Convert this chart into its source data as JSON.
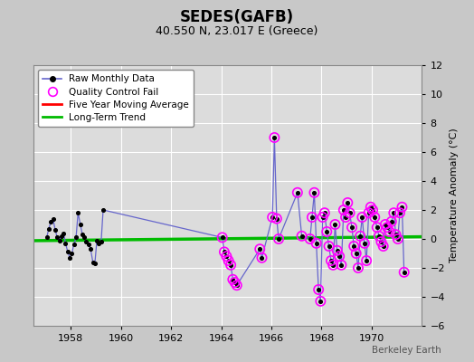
{
  "title": "SEDES(GAFB)",
  "subtitle": "40.550 N, 23.017 E (Greece)",
  "ylabel": "Temperature Anomaly (°C)",
  "watermark": "Berkeley Earth",
  "xlim": [
    1956.5,
    1972.0
  ],
  "ylim": [
    -6,
    12
  ],
  "yticks": [
    -6,
    -4,
    -2,
    0,
    2,
    4,
    6,
    8,
    10,
    12
  ],
  "xticks": [
    1958,
    1960,
    1962,
    1964,
    1966,
    1968,
    1970
  ],
  "fig_bg_color": "#c8c8c8",
  "plot_bg_color": "#dcdcdc",
  "raw_line_color": "#6666cc",
  "raw_dot_color": "#000000",
  "qc_circle_color": "#ff00ff",
  "moving_avg_color": "#ff0000",
  "trend_color": "#00bb00",
  "grid_color": "#ffffff",
  "raw_x": [
    1957.04,
    1957.12,
    1957.21,
    1957.29,
    1957.38,
    1957.46,
    1957.54,
    1957.62,
    1957.71,
    1957.79,
    1957.88,
    1957.96,
    1958.04,
    1958.12,
    1958.21,
    1958.29,
    1958.38,
    1958.46,
    1958.54,
    1958.62,
    1958.71,
    1958.79,
    1958.88,
    1958.96,
    1959.04,
    1959.12,
    1959.21,
    1959.29,
    1964.04,
    1964.12,
    1964.21,
    1964.29,
    1964.38,
    1964.46,
    1964.54,
    1964.62,
    1965.54,
    1965.62,
    1966.04,
    1966.12,
    1966.21,
    1966.29,
    1967.04,
    1967.21,
    1967.54,
    1967.62,
    1967.71,
    1967.79,
    1967.88,
    1967.96,
    1968.04,
    1968.12,
    1968.21,
    1968.29,
    1968.38,
    1968.46,
    1968.54,
    1968.62,
    1968.71,
    1968.79,
    1968.88,
    1968.96,
    1969.04,
    1969.12,
    1969.21,
    1969.29,
    1969.38,
    1969.46,
    1969.54,
    1969.62,
    1969.71,
    1969.79,
    1969.88,
    1969.96,
    1970.04,
    1970.12,
    1970.21,
    1970.29,
    1970.38,
    1970.46,
    1970.54,
    1970.62,
    1970.71,
    1970.79,
    1970.88,
    1970.96,
    1971.04,
    1971.12,
    1971.21,
    1971.29
  ],
  "raw_y": [
    0.1,
    0.7,
    1.2,
    1.4,
    0.6,
    0.1,
    -0.1,
    0.2,
    0.4,
    -0.3,
    -0.9,
    -1.3,
    -1.0,
    -0.4,
    0.1,
    1.8,
    1.0,
    0.3,
    0.1,
    -0.2,
    -0.4,
    -0.7,
    -1.6,
    -1.7,
    -0.1,
    -0.3,
    -0.2,
    2.0,
    0.1,
    -0.9,
    -1.2,
    -1.5,
    -1.8,
    -2.8,
    -3.0,
    -3.2,
    -0.7,
    -1.3,
    1.5,
    7.0,
    1.4,
    0.0,
    3.2,
    0.2,
    0.0,
    1.5,
    3.2,
    -0.3,
    -3.5,
    -4.3,
    1.5,
    1.8,
    0.5,
    -0.5,
    -1.5,
    -1.8,
    1.0,
    -0.8,
    -1.2,
    -1.8,
    2.0,
    1.5,
    2.5,
    1.8,
    0.8,
    -0.5,
    -1.0,
    -2.0,
    0.2,
    1.5,
    -0.3,
    -1.5,
    1.8,
    2.2,
    2.0,
    1.5,
    0.8,
    0.2,
    -0.2,
    -0.5,
    1.0,
    0.8,
    0.5,
    1.2,
    1.8,
    0.3,
    0.0,
    1.8,
    2.2,
    -2.3
  ],
  "qc_x": [
    1964.04,
    1964.12,
    1964.21,
    1964.29,
    1964.38,
    1964.46,
    1964.54,
    1964.62,
    1965.54,
    1965.62,
    1966.04,
    1966.12,
    1966.21,
    1966.29,
    1967.04,
    1967.21,
    1967.54,
    1967.62,
    1967.71,
    1967.79,
    1967.88,
    1967.96,
    1968.04,
    1968.12,
    1968.21,
    1968.29,
    1968.38,
    1968.46,
    1968.54,
    1968.62,
    1968.71,
    1968.79,
    1968.88,
    1968.96,
    1969.04,
    1969.12,
    1969.21,
    1969.29,
    1969.38,
    1969.46,
    1969.54,
    1969.62,
    1969.71,
    1969.79,
    1969.88,
    1969.96,
    1970.04,
    1970.12,
    1970.21,
    1970.29,
    1970.38,
    1970.46,
    1970.54,
    1970.62,
    1970.71,
    1970.79,
    1970.88,
    1970.96,
    1971.04,
    1971.12,
    1971.21,
    1971.29
  ],
  "qc_y": [
    0.1,
    -0.9,
    -1.2,
    -1.5,
    -1.8,
    -2.8,
    -3.0,
    -3.2,
    -0.7,
    -1.3,
    1.5,
    7.0,
    1.4,
    0.0,
    3.2,
    0.2,
    0.0,
    1.5,
    3.2,
    -0.3,
    -3.5,
    -4.3,
    1.5,
    1.8,
    0.5,
    -0.5,
    -1.5,
    -1.8,
    1.0,
    -0.8,
    -1.2,
    -1.8,
    2.0,
    1.5,
    2.5,
    1.8,
    0.8,
    -0.5,
    -1.0,
    -2.0,
    0.2,
    1.5,
    -0.3,
    -1.5,
    1.8,
    2.2,
    2.0,
    1.5,
    0.8,
    0.2,
    -0.2,
    -0.5,
    1.0,
    0.8,
    0.5,
    1.2,
    1.8,
    0.3,
    0.0,
    1.8,
    2.2,
    -2.3
  ],
  "trend_x": [
    1956.5,
    1972.0
  ],
  "trend_y": [
    -0.12,
    0.15
  ],
  "moving_avg_x": [],
  "moving_avg_y": []
}
